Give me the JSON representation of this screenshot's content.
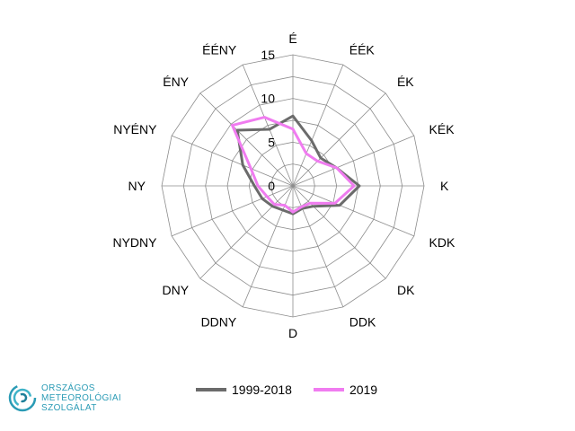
{
  "chart_data": {
    "type": "radar",
    "directions": [
      "É",
      "ÉÉK",
      "ÉK",
      "KÉK",
      "K",
      "KDK",
      "DK",
      "DDK",
      "D",
      "DDNY",
      "DNY",
      "NYDNY",
      "NY",
      "NYÉNY",
      "ÉNY",
      "ÉÉNY"
    ],
    "rlim": [
      0,
      15
    ],
    "ticks": [
      "0",
      "5",
      "10",
      "15"
    ],
    "grid": true,
    "legend_position": "bottom",
    "series": [
      {
        "name": "1999-2018",
        "color": "#6b6b6b",
        "values": [
          8,
          5.6,
          4.5,
          5.4,
          7.6,
          5.8,
          3.3,
          2.8,
          3.2,
          3.0,
          3.3,
          3.8,
          4.4,
          6.2,
          9.0,
          7.0
        ]
      },
      {
        "name": "2019",
        "color": "#f07cf0",
        "values": [
          6.5,
          4.0,
          4.0,
          5.4,
          7.0,
          5.2,
          2.8,
          2.6,
          3.0,
          2.4,
          3.0,
          3.2,
          4.0,
          5.2,
          9.8,
          8.5
        ]
      }
    ]
  },
  "logo": {
    "lines": [
      "ORSZÁGOS",
      "METEOROLÓGIAI",
      "SZOLGÁLAT"
    ],
    "color": "#2a9bb5"
  }
}
